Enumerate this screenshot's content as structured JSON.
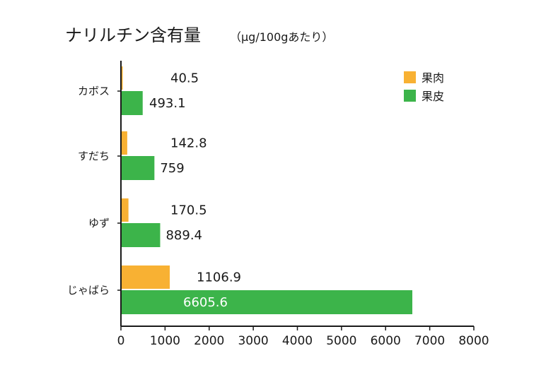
{
  "chart_data": {
    "type": "bar",
    "orientation": "horizontal",
    "title": "ナリルチン含有量",
    "title_unit": "（μg/100gあたり）",
    "categories": [
      "カボス",
      "すだち",
      "ゆず",
      "じゃばら"
    ],
    "series": [
      {
        "name": "果肉",
        "color": "#f8b133",
        "values": [
          40.5,
          142.8,
          170.5,
          1106.9
        ]
      },
      {
        "name": "果皮",
        "color": "#3cb44a",
        "values": [
          493.1,
          759,
          889.4,
          6605.6
        ]
      }
    ],
    "value_labels": [
      [
        "40.5",
        "142.8",
        "170.5",
        "1106.9"
      ],
      [
        "493.1",
        "759",
        "889.4",
        "6605.6"
      ]
    ],
    "xlim": [
      0,
      8000
    ],
    "xticks": [
      "0",
      "1000",
      "2000",
      "3000",
      "4000",
      "5000",
      "6000",
      "7000",
      "8000"
    ],
    "legend_position": "top-right",
    "grid": false
  }
}
